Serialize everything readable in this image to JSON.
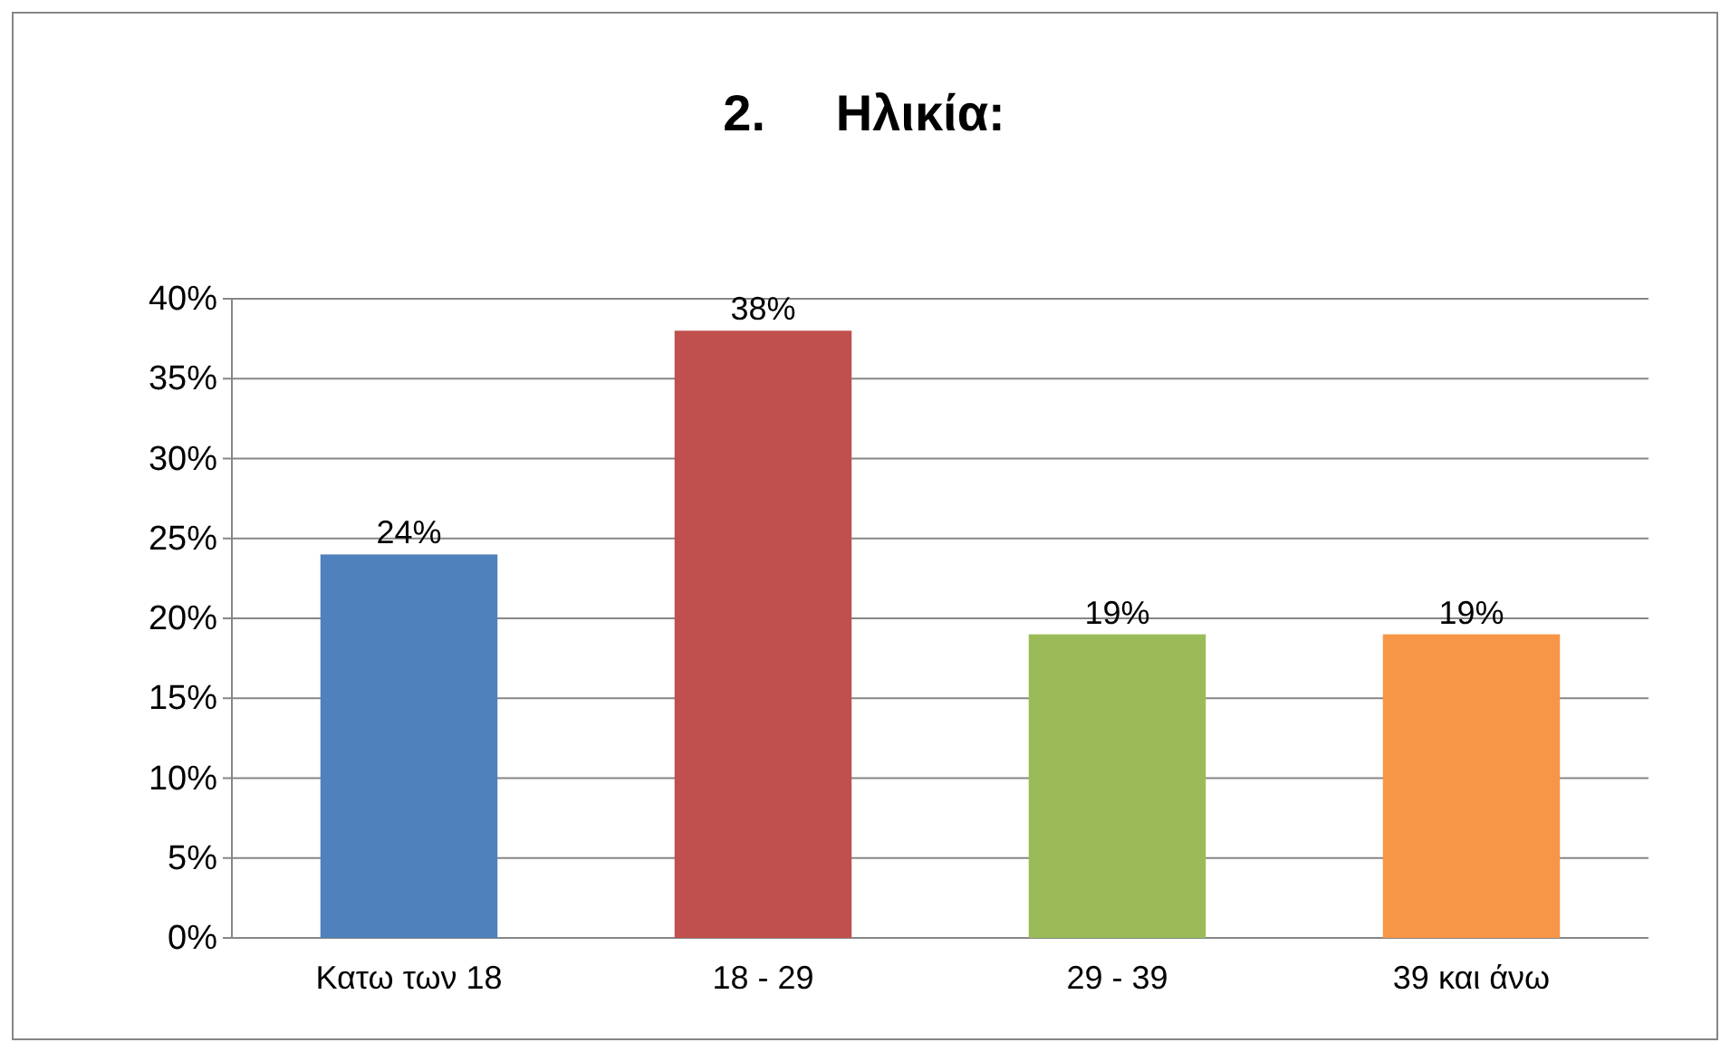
{
  "chart_data": {
    "type": "bar",
    "title": "2.     Ηλικία:",
    "categories": [
      "Κατω των 18",
      "18 - 29",
      "29 - 39",
      "39 και άνω"
    ],
    "values": [
      24,
      38,
      19,
      19
    ],
    "colors": [
      "#4f81bd",
      "#c0504d",
      "#9bbb59",
      "#f79646"
    ],
    "value_labels": [
      "24%",
      "38%",
      "19%",
      "19%"
    ],
    "ylim": [
      0,
      40
    ],
    "yticks": [
      {
        "value": 0,
        "label": "0%"
      },
      {
        "value": 5,
        "label": "5%"
      },
      {
        "value": 10,
        "label": "10%"
      },
      {
        "value": 15,
        "label": "15%"
      },
      {
        "value": 20,
        "label": "20%"
      },
      {
        "value": 25,
        "label": "25%"
      },
      {
        "value": 30,
        "label": "30%"
      },
      {
        "value": 35,
        "label": "35%"
      },
      {
        "value": 40,
        "label": "40%"
      }
    ],
    "grid": "y"
  }
}
